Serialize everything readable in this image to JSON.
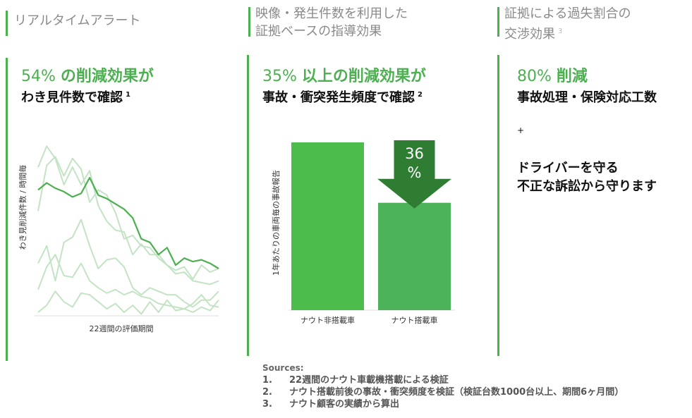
{
  "colors": {
    "accent": "#4caf50",
    "bar1": "#4cbd4c",
    "bar2": "#4cb35a",
    "arrow": "#2e7d32"
  },
  "col1": {
    "header": "リアルタイムアラート",
    "headline_num": "54%",
    "headline_rest": "の削減効果が",
    "sub": "わき見件数で確認",
    "sup": "1"
  },
  "col2": {
    "header_line1": "映像・発生件数を利用した",
    "header_line2": "証拠ベースの指導効果",
    "headline_num": "35%",
    "headline_rest": "以上の削減効果が",
    "sub": "事故・衝突発生頻度で確認",
    "sup": "2"
  },
  "col3": {
    "header_line1": "証拠による過失割合の",
    "header_line2": "交渉効果",
    "header_sup": "3",
    "headline_num": "80%",
    "headline_rest": "削減",
    "sub": "事故処理・保険対応工数",
    "plus": "+",
    "line1": "ドライバーを守る",
    "line2": "不正な訴訟から守ります"
  },
  "chart_data": [
    {
      "type": "line",
      "ylabel": "わき見削減件数 / 時間毎",
      "xlabel": "22週間の評価期間",
      "x": [
        1,
        2,
        3,
        4,
        5,
        6,
        7,
        8,
        9,
        10,
        11,
        12,
        13,
        14,
        15,
        16,
        17,
        18,
        19,
        20,
        21,
        22
      ],
      "series": [
        {
          "values": [
            7.2,
            7.6,
            7.3,
            7.1,
            6.8,
            7.0,
            7.9,
            6.9,
            6.7,
            6.4,
            6.1,
            5.6,
            4.4,
            4.2,
            3.5,
            3.9,
            2.9,
            3.3,
            3.1,
            3.2,
            3.0,
            2.7
          ]
        },
        {
          "values": [
            8.5,
            9.7,
            9.0,
            7.5,
            8.5,
            7.5,
            8.3,
            6.3,
            5.4,
            4.9,
            4.8,
            3.5,
            4.1,
            3.5,
            3.5,
            2.9,
            2.6,
            2.8,
            2.1,
            2.9,
            2.5,
            2.7
          ]
        },
        {
          "values": [
            6.0,
            8.6,
            9.1,
            8.0,
            9.0,
            8.4,
            6.5,
            7.2,
            6.9,
            5.9,
            4.4,
            4.6,
            4.0,
            3.9,
            3.3,
            2.9,
            2.4,
            2.5,
            2.0,
            1.9,
            1.8,
            2.0
          ]
        },
        {
          "values": [
            3.0,
            4.0,
            2.0,
            4.2,
            4.5,
            5.5,
            4.0,
            2.7,
            3.2,
            3.3,
            2.8,
            1.6,
            1.2,
            1.6,
            1.4,
            1.2,
            1.2,
            0.8,
            0.5,
            0.9,
            0.9,
            1.4
          ]
        },
        {
          "values": [
            1.5,
            2.8,
            3.5,
            2.3,
            2.2,
            3.0,
            2.0,
            1.6,
            1.3,
            1.5,
            1.2,
            1.4,
            1.1,
            1.0,
            0.7,
            0.6,
            0.5,
            0.4,
            0.7,
            1.2,
            0.6,
            0.5
          ]
        },
        {
          "values": [
            0.2,
            0.6,
            1.4,
            0.8,
            0.5,
            1.3,
            1.2,
            0.8,
            0.4,
            0.7,
            0.2,
            0.6,
            0.1,
            0.8,
            0.2,
            0.9,
            0.3,
            0.4,
            0.2,
            0.5,
            0.3,
            0.9
          ]
        }
      ]
    },
    {
      "type": "bar",
      "ylabel": "1年あたりの車両毎の事故報告",
      "categories": [
        "ナウト非搭載車",
        "ナウト搭載車"
      ],
      "values": [
        100,
        64
      ],
      "annotation_line1": "36",
      "annotation_line2": "%"
    }
  ],
  "sources": {
    "title": "Sources:",
    "items": [
      {
        "num": "1.",
        "text": "22週間のナウト車載機搭載による検証"
      },
      {
        "num": "2.",
        "text": "ナウト搭載前後の事故・衝突頻度を検証（検証台数1000台以上、期間6ヶ月間）"
      },
      {
        "num": "3.",
        "text": "ナウト顧客の実績から算出"
      }
    ]
  }
}
